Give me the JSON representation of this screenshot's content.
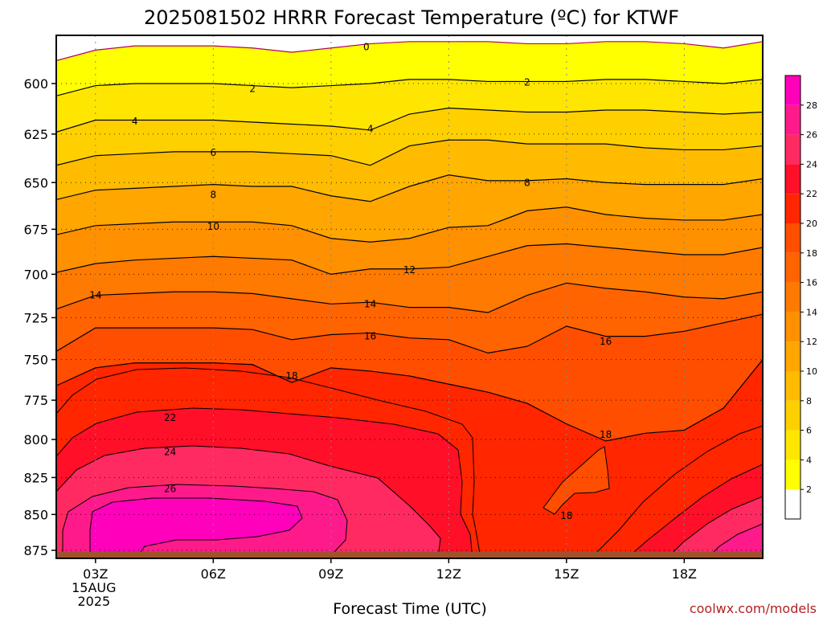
{
  "title": "2025081502 HRRR Forecast Temperature (ºC) for KTWF",
  "credit": "coolwx.com/models",
  "chart_data": {
    "type": "heatmap",
    "title": "2025081502 HRRR Forecast Temperature (ºC) for KTWF",
    "xlabel": "Forecast Time (UTC)",
    "ylabel": "",
    "x_ticks": [
      {
        "hour": 3,
        "label": "03Z",
        "sub1": "15AUG",
        "sub2": "2025"
      },
      {
        "hour": 6,
        "label": "06Z"
      },
      {
        "hour": 9,
        "label": "09Z"
      },
      {
        "hour": 12,
        "label": "12Z"
      },
      {
        "hour": 15,
        "label": "15Z"
      },
      {
        "hour": 18,
        "label": "18Z"
      }
    ],
    "xlim": [
      2,
      20
    ],
    "y_ticks": [
      600,
      625,
      650,
      675,
      700,
      725,
      750,
      775,
      800,
      825,
      850,
      875
    ],
    "ylim": [
      575,
      880
    ],
    "y_scale": "log-pressure",
    "grid": true,
    "colorbar": {
      "levels": [
        0,
        2,
        4,
        6,
        8,
        10,
        12,
        14,
        16,
        18,
        20,
        22,
        24,
        26,
        28,
        30
      ],
      "tick_labels": [
        "2",
        "4",
        "6",
        "8",
        "10",
        "12",
        "14",
        "16",
        "18",
        "20",
        "22",
        "24",
        "26",
        "28"
      ],
      "colors": [
        "#ffffff",
        "#ffff00",
        "#ffe600",
        "#ffd000",
        "#ffbb00",
        "#ffa600",
        "#ff9000",
        "#ff7a00",
        "#ff6400",
        "#ff4e00",
        "#ff2600",
        "#ff0f28",
        "#ff2a62",
        "#ff1a8c",
        "#ff00bb"
      ]
    },
    "x": [
      2,
      3,
      4,
      5,
      6,
      7,
      8,
      9,
      10,
      11,
      12,
      13,
      14,
      15,
      16,
      17,
      18,
      19,
      20
    ],
    "isotherms": [
      {
        "value": 0,
        "p": [
          589,
          584,
          582,
          582,
          582,
          583,
          585,
          583,
          581,
          580,
          580,
          580,
          581,
          581,
          580,
          580,
          581,
          583,
          580
        ]
      },
      {
        "value": 2,
        "p": [
          606,
          601,
          600,
          600,
          600,
          601,
          602,
          601,
          600,
          598,
          598,
          599,
          599,
          599,
          598,
          598,
          599,
          600,
          598
        ]
      },
      {
        "value": 4,
        "p": [
          624,
          618,
          618,
          618,
          618,
          619,
          620,
          621,
          623,
          615,
          612,
          613,
          614,
          614,
          613,
          613,
          614,
          615,
          614
        ]
      },
      {
        "value": 6,
        "p": [
          641,
          636,
          635,
          634,
          634,
          634,
          635,
          636,
          641,
          631,
          628,
          628,
          630,
          630,
          630,
          632,
          633,
          633,
          631
        ]
      },
      {
        "value": 8,
        "p": [
          659,
          654,
          653,
          652,
          651,
          652,
          652,
          657,
          660,
          652,
          646,
          649,
          649,
          648,
          650,
          651,
          651,
          651,
          648
        ]
      },
      {
        "value": 10,
        "p": [
          678,
          673,
          672,
          671,
          671,
          671,
          673,
          680,
          682,
          680,
          674,
          673,
          665,
          663,
          667,
          669,
          670,
          670,
          667
        ]
      },
      {
        "value": 12,
        "p": [
          699,
          694,
          692,
          691,
          690,
          691,
          692,
          700,
          697,
          697,
          696,
          690,
          684,
          683,
          685,
          687,
          689,
          689,
          685
        ]
      },
      {
        "value": 14,
        "p": [
          720,
          712,
          711,
          710,
          710,
          711,
          714,
          717,
          716,
          719,
          719,
          722,
          712,
          705,
          708,
          710,
          713,
          714,
          710
        ]
      },
      {
        "value": 16,
        "p": [
          745,
          731,
          731,
          731,
          731,
          732,
          738,
          735,
          734,
          737,
          738,
          746,
          742,
          730,
          736,
          736,
          733,
          728,
          723
        ]
      },
      {
        "value": 18,
        "p": [
          766,
          755,
          752,
          752,
          752,
          753,
          764,
          755,
          757,
          760,
          765,
          770,
          777,
          790,
          801,
          796,
          794,
          780,
          750
        ]
      }
    ],
    "contour_labels": [
      {
        "x": 9.9,
        "p": 582.5,
        "text": "0"
      },
      {
        "x": 7.0,
        "p": 602.5,
        "text": "2"
      },
      {
        "x": 14.0,
        "p": 599.5,
        "text": "2"
      },
      {
        "x": 4.0,
        "p": 618.5,
        "text": "4"
      },
      {
        "x": 10.0,
        "p": 622.5,
        "text": "4"
      },
      {
        "x": 6.0,
        "p": 634.5,
        "text": "6"
      },
      {
        "x": 14.0,
        "p": 650.0,
        "text": "8"
      },
      {
        "x": 6.0,
        "p": 656.5,
        "text": "8"
      },
      {
        "x": 6.0,
        "p": 673.5,
        "text": "10"
      },
      {
        "x": 11.0,
        "p": 697.5,
        "text": "12"
      },
      {
        "x": 3.0,
        "p": 712.0,
        "text": "14"
      },
      {
        "x": 10.0,
        "p": 717.0,
        "text": "14"
      },
      {
        "x": 10.0,
        "p": 736.0,
        "text": "16"
      },
      {
        "x": 16.0,
        "p": 739.0,
        "text": "16"
      },
      {
        "x": 8.0,
        "p": 760.0,
        "text": "18"
      },
      {
        "x": 16.0,
        "p": 797.0,
        "text": "18"
      },
      {
        "x": 15.0,
        "p": 851.0,
        "text": "18"
      },
      {
        "x": 4.9,
        "p": 786.0,
        "text": "22"
      },
      {
        "x": 4.9,
        "p": 808.0,
        "text": "24"
      },
      {
        "x": 4.9,
        "p": 832.5,
        "text": "26"
      }
    ],
    "surface_pressure": 876,
    "surface_color": "#a0522d"
  }
}
